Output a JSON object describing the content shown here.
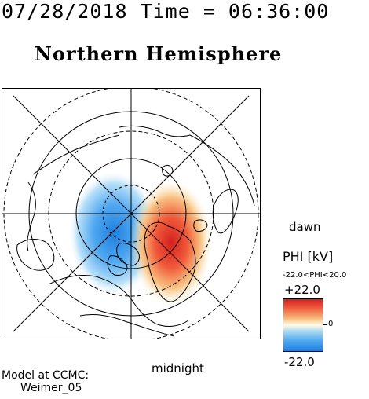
{
  "header": {
    "timestamp": "07/28/2018 Time = 06:36:00",
    "title": "Northern Hemisphere"
  },
  "map": {
    "label_dawn": "dawn",
    "label_midnight": "midnight"
  },
  "colorbar": {
    "title": "PHI [kV]",
    "range_text": "-22.0<PHI<20.0",
    "max_label": "+22.0",
    "zero_label": "0",
    "min_label": "-22.0",
    "colors": {
      "max": "#d42020",
      "mid": "#fffbe6",
      "min": "#1e7fe0"
    }
  },
  "footer": {
    "line1": "Model at CCMC:",
    "line2": "Weimer_05"
  }
}
